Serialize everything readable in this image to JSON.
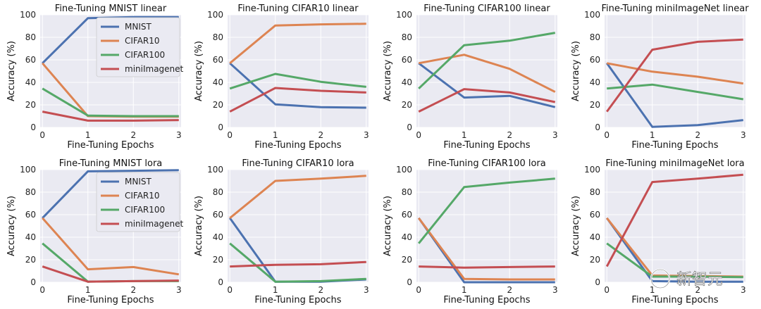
{
  "figure": {
    "watermark": "新智元",
    "colors": {
      "MNIST": "#4c72b0",
      "CIFAR10": "#dd8452",
      "CIFAR100": "#55a868",
      "miniImagenet": "#c44e52"
    },
    "series_names": [
      "MNIST",
      "CIFAR10",
      "CIFAR100",
      "miniImagenet"
    ]
  },
  "chart_data": [
    {
      "type": "line",
      "title": "Fine-Tuning MNIST linear",
      "xlabel": "Fine-Tuning Epochs",
      "ylabel": "Accuracy (%)",
      "x": [
        0,
        1,
        2,
        3
      ],
      "xlim": [
        -0.05,
        3.05
      ],
      "ylim": [
        0,
        100
      ],
      "yticks": [
        0,
        20,
        40,
        60,
        80,
        100
      ],
      "grid": true,
      "legend": "top-center",
      "series": [
        {
          "name": "MNIST",
          "values": [
            57,
            97,
            98,
            98
          ]
        },
        {
          "name": "CIFAR10",
          "values": [
            57,
            10,
            9.5,
            9.5
          ]
        },
        {
          "name": "CIFAR100",
          "values": [
            34.5,
            10.5,
            10,
            10
          ]
        },
        {
          "name": "miniImagenet",
          "values": [
            14,
            6,
            6,
            6.5
          ]
        }
      ]
    },
    {
      "type": "line",
      "title": "Fine-Tuning CIFAR10 linear",
      "xlabel": "Fine-Tuning Epochs",
      "ylabel": "Accuracy (%)",
      "x": [
        0,
        1,
        2,
        3
      ],
      "xlim": [
        -0.05,
        3.05
      ],
      "ylim": [
        0,
        100
      ],
      "yticks": [
        0,
        20,
        40,
        60,
        80,
        100
      ],
      "grid": true,
      "series": [
        {
          "name": "MNIST",
          "values": [
            57,
            20.5,
            18,
            17.5
          ]
        },
        {
          "name": "CIFAR10",
          "values": [
            57,
            90.5,
            91.5,
            92
          ]
        },
        {
          "name": "CIFAR100",
          "values": [
            34.5,
            47.5,
            40.5,
            36
          ]
        },
        {
          "name": "miniImagenet",
          "values": [
            14,
            35,
            32.5,
            31
          ]
        }
      ]
    },
    {
      "type": "line",
      "title": "Fine-Tuning CIFAR100 linear",
      "xlabel": "Fine-Tuning Epochs",
      "ylabel": "Accuracy (%)",
      "x": [
        0,
        1,
        2,
        3
      ],
      "xlim": [
        -0.05,
        3.05
      ],
      "ylim": [
        0,
        100
      ],
      "yticks": [
        0,
        20,
        40,
        60,
        80,
        100
      ],
      "grid": true,
      "series": [
        {
          "name": "MNIST",
          "values": [
            57,
            26.5,
            28,
            18
          ]
        },
        {
          "name": "CIFAR10",
          "values": [
            57,
            64.5,
            52,
            31.5
          ]
        },
        {
          "name": "CIFAR100",
          "values": [
            34.5,
            73,
            77,
            84
          ]
        },
        {
          "name": "miniImagenet",
          "values": [
            14,
            34,
            31,
            22.5
          ]
        }
      ]
    },
    {
      "type": "line",
      "title": "Fine-Tuning miniImageNet linear",
      "xlabel": "Fine-Tuning Epochs",
      "ylabel": "Accuracy (%)",
      "x": [
        0,
        1,
        2,
        3
      ],
      "xlim": [
        -0.05,
        3.05
      ],
      "ylim": [
        0,
        100
      ],
      "yticks": [
        0,
        20,
        40,
        60,
        80,
        100
      ],
      "grid": true,
      "series": [
        {
          "name": "MNIST",
          "values": [
            57,
            0.5,
            2,
            6.5
          ]
        },
        {
          "name": "CIFAR10",
          "values": [
            57,
            49.5,
            45,
            39
          ]
        },
        {
          "name": "CIFAR100",
          "values": [
            34.5,
            38,
            31.5,
            25
          ]
        },
        {
          "name": "miniImagenet",
          "values": [
            14,
            69,
            76,
            78
          ]
        }
      ]
    },
    {
      "type": "line",
      "title": "Fine-Tuning MNIST lora",
      "xlabel": "Fine-Tuning Epochs",
      "ylabel": "Accuracy (%)",
      "x": [
        0,
        1,
        2,
        3
      ],
      "xlim": [
        -0.05,
        3.05
      ],
      "ylim": [
        0,
        100
      ],
      "yticks": [
        0,
        20,
        40,
        60,
        80,
        100
      ],
      "grid": true,
      "legend": "top-center",
      "series": [
        {
          "name": "MNIST",
          "values": [
            57,
            98.5,
            99,
            99.5
          ]
        },
        {
          "name": "CIFAR10",
          "values": [
            57,
            11.5,
            13.5,
            7
          ]
        },
        {
          "name": "CIFAR100",
          "values": [
            34.5,
            0.5,
            1,
            1
          ]
        },
        {
          "name": "miniImagenet",
          "values": [
            14,
            0.5,
            1,
            1.5
          ]
        }
      ]
    },
    {
      "type": "line",
      "title": "Fine-Tuning CIFAR10 lora",
      "xlabel": "Fine-Tuning Epochs",
      "ylabel": "Accuracy (%)",
      "x": [
        0,
        1,
        2,
        3
      ],
      "xlim": [
        -0.05,
        3.05
      ],
      "ylim": [
        0,
        100
      ],
      "yticks": [
        0,
        20,
        40,
        60,
        80,
        100
      ],
      "grid": true,
      "series": [
        {
          "name": "MNIST",
          "values": [
            57,
            0.5,
            0.5,
            2.5
          ]
        },
        {
          "name": "CIFAR10",
          "values": [
            57,
            90,
            92,
            94.5
          ]
        },
        {
          "name": "CIFAR100",
          "values": [
            34.5,
            0.5,
            1,
            3
          ]
        },
        {
          "name": "miniImagenet",
          "values": [
            14,
            15.5,
            16,
            18
          ]
        }
      ]
    },
    {
      "type": "line",
      "title": "Fine-Tuning CIFAR100 lora",
      "xlabel": "Fine-Tuning Epochs",
      "ylabel": "Accuracy (%)",
      "x": [
        0,
        1,
        2,
        3
      ],
      "xlim": [
        -0.05,
        3.05
      ],
      "ylim": [
        0,
        100
      ],
      "yticks": [
        0,
        20,
        40,
        60,
        80,
        100
      ],
      "grid": true,
      "series": [
        {
          "name": "MNIST",
          "values": [
            57,
            0,
            0,
            0
          ]
        },
        {
          "name": "CIFAR10",
          "values": [
            57,
            3,
            2.5,
            2.5
          ]
        },
        {
          "name": "CIFAR100",
          "values": [
            34.5,
            84.5,
            88.5,
            92
          ]
        },
        {
          "name": "miniImagenet",
          "values": [
            14,
            13,
            13.5,
            14
          ]
        }
      ]
    },
    {
      "type": "line",
      "title": "Fine-Tuning miniImageNet lora",
      "xlabel": "Fine-Tuning Epochs",
      "ylabel": "Accuracy (%)",
      "x": [
        0,
        1,
        2,
        3
      ],
      "xlim": [
        -0.05,
        3.05
      ],
      "ylim": [
        0,
        100
      ],
      "yticks": [
        0,
        20,
        40,
        60,
        80,
        100
      ],
      "grid": true,
      "series": [
        {
          "name": "MNIST",
          "values": [
            57,
            1,
            0.5,
            0.5
          ]
        },
        {
          "name": "CIFAR10",
          "values": [
            57,
            6,
            5.5,
            5
          ]
        },
        {
          "name": "CIFAR100",
          "values": [
            34.5,
            5,
            5,
            4.5
          ]
        },
        {
          "name": "miniImagenet",
          "values": [
            14,
            89,
            92,
            95.5
          ]
        }
      ]
    }
  ]
}
